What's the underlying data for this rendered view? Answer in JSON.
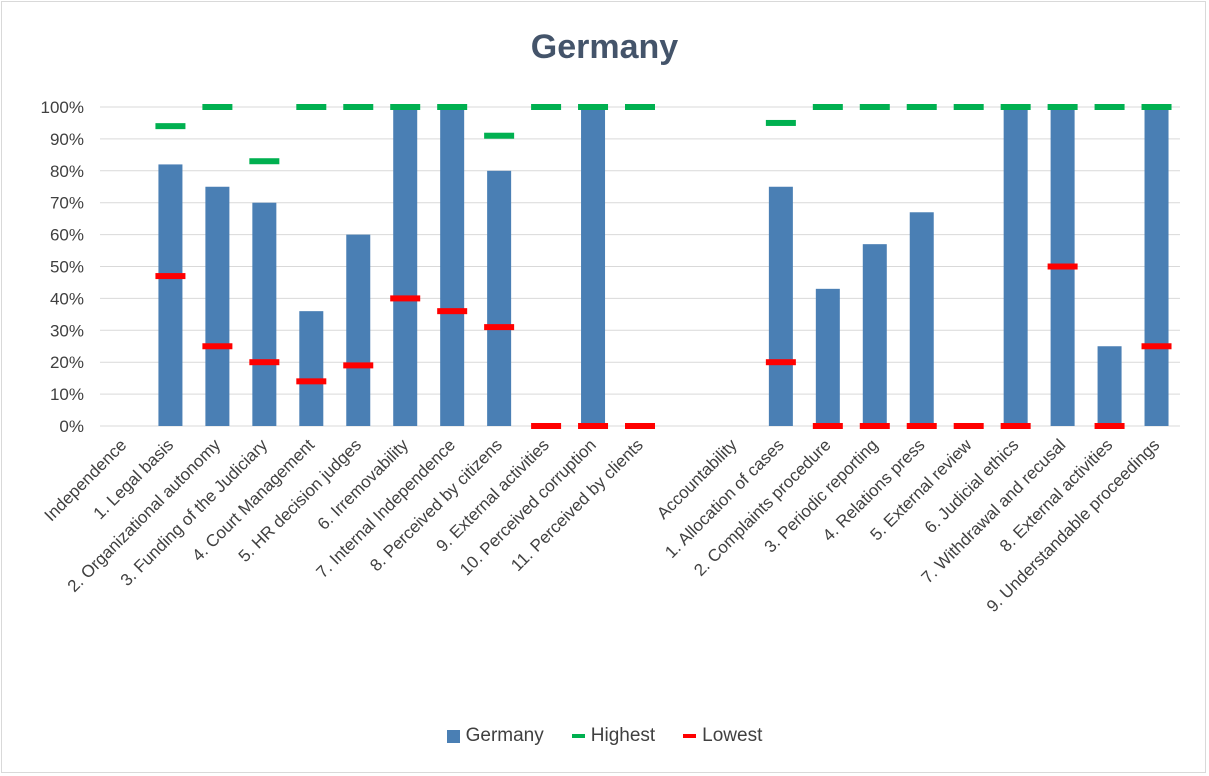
{
  "chart_data": {
    "type": "bar",
    "title": "Germany",
    "xlabel": "",
    "ylabel": "",
    "ylim": [
      0,
      100
    ],
    "yticks": [
      "0%",
      "10%",
      "20%",
      "30%",
      "40%",
      "50%",
      "60%",
      "70%",
      "80%",
      "90%",
      "100%"
    ],
    "grid": true,
    "legend_position": "bottom",
    "categories": [
      "Independence",
      "1. Legal basis",
      "2. Organizational autonomy",
      "3. Funding of the Judiciary",
      "4. Court Management",
      "5. HR decision judges",
      "6. Irremovability",
      "7. Internal Independence",
      "8. Perceived by citizens",
      "9. External activities",
      "10. Perceived corruption",
      "11. Perceived by clients",
      "",
      "Accountability",
      "1. Allocation of cases",
      "2. Complaints procedure",
      "3. Periodic reporting",
      "4. Relations press",
      "5. External review",
      "6. Judicial ethics",
      "7. Withdrawal and recusal",
      "8. External activities",
      "9. Understandable proceedings"
    ],
    "series": [
      {
        "name": "Germany",
        "kind": "bar",
        "color": "#4a7fb4",
        "values": [
          null,
          82,
          75,
          70,
          36,
          60,
          100,
          100,
          80,
          0,
          100,
          0,
          null,
          null,
          75,
          43,
          57,
          67,
          0,
          100,
          100,
          25,
          100
        ]
      },
      {
        "name": "Highest",
        "kind": "marker",
        "color": "#00b050",
        "values": [
          null,
          94,
          100,
          83,
          100,
          100,
          100,
          100,
          91,
          100,
          100,
          100,
          null,
          null,
          95,
          100,
          100,
          100,
          100,
          100,
          100,
          100,
          100
        ]
      },
      {
        "name": "Lowest",
        "kind": "marker",
        "color": "#ff0000",
        "values": [
          null,
          47,
          25,
          20,
          14,
          19,
          40,
          36,
          31,
          0,
          0,
          0,
          null,
          null,
          20,
          0,
          0,
          0,
          0,
          0,
          50,
          0,
          25
        ]
      }
    ]
  }
}
